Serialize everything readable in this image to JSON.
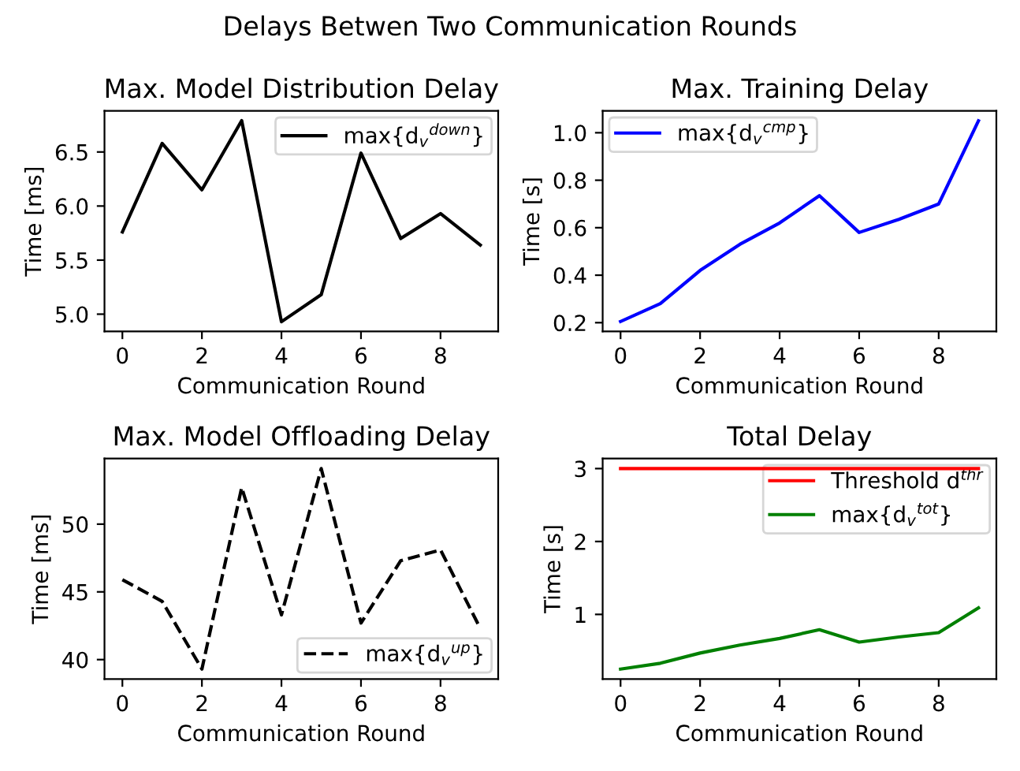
{
  "chart_data": [
    {
      "type": "line",
      "title": "Max. Model Distribution Delay",
      "xlabel": "Communication Round",
      "ylabel": "Time [ms]",
      "annotations": [
        "Delays Betwen Two Communication Rounds"
      ],
      "x": [
        0,
        1,
        2,
        3,
        4,
        5,
        6,
        7,
        8,
        9
      ],
      "series": [
        {
          "name": "max{d$_{v}$$^{down}$}",
          "color": "#000000",
          "line_style": "solid",
          "values": [
            5.76,
            6.58,
            6.15,
            6.79,
            4.93,
            5.18,
            6.49,
            5.7,
            5.93,
            5.64
          ]
        }
      ],
      "xlim": [
        -0.45,
        9.45
      ],
      "ylim": [
        4.84,
        6.88
      ],
      "xticks": [
        0,
        2,
        4,
        6,
        8
      ],
      "yticks": [
        {
          "value": 5,
          "label": "5.0"
        },
        5.5,
        {
          "value": 6,
          "label": "6.0"
        },
        6.5
      ],
      "legend": "upper right"
    },
    {
      "type": "line",
      "title": "Max. Training Delay",
      "xlabel": "Communication Round",
      "ylabel": "Time [s]",
      "x": [
        0,
        1,
        2,
        3,
        4,
        5,
        6,
        7,
        8,
        9
      ],
      "series": [
        {
          "name": "max{d$_{v}$$^{cmp}$}",
          "color": "#0000ff",
          "line_style": "solid",
          "values": [
            0.205,
            0.28,
            0.42,
            0.53,
            0.62,
            0.735,
            0.58,
            0.635,
            0.7,
            1.05
          ]
        }
      ],
      "xlim": [
        -0.45,
        9.45
      ],
      "ylim": [
        0.163,
        1.092
      ],
      "xticks": [
        0,
        2,
        4,
        6,
        8
      ],
      "yticks": [
        0.2,
        0.4,
        0.6,
        0.8,
        {
          "value": 1,
          "label": "1.0"
        }
      ],
      "legend": "upper left"
    },
    {
      "type": "line",
      "title": "Max. Model Offloading Delay",
      "xlabel": "Communication Round",
      "ylabel": "Time [ms]",
      "x": [
        0,
        1,
        2,
        3,
        4,
        5,
        6,
        7,
        8,
        9
      ],
      "series": [
        {
          "name": "max{d$_{v}$$^{up}$}",
          "color": "#000000",
          "line_style": "dashed",
          "values": [
            45.9,
            44.3,
            39.3,
            52.7,
            43.3,
            54.1,
            42.7,
            47.3,
            48.1,
            42.3
          ]
        }
      ],
      "xlim": [
        -0.45,
        9.45
      ],
      "ylim": [
        38.56,
        54.84
      ],
      "xticks": [
        0,
        2,
        4,
        6,
        8
      ],
      "yticks": [
        40,
        45,
        50
      ],
      "legend": "lower right"
    },
    {
      "type": "line",
      "title": "Total Delay",
      "xlabel": "Communication Round",
      "ylabel": "Time [s]",
      "x": [
        0,
        1,
        2,
        3,
        4,
        5,
        6,
        7,
        8,
        9
      ],
      "series": [
        {
          "name": "Threshold d$^{thr}$",
          "color": "#ff0000",
          "line_style": "solid",
          "values": [
            3,
            3,
            3,
            3,
            3,
            3,
            3,
            3,
            3,
            3
          ]
        },
        {
          "name": "max{d$_{v}$$^{tot}$}",
          "color": "#008000",
          "line_style": "solid",
          "values": [
            0.25,
            0.33,
            0.47,
            0.58,
            0.67,
            0.79,
            0.62,
            0.69,
            0.75,
            1.09
          ]
        }
      ],
      "xlim": [
        -0.45,
        9.45
      ],
      "ylim": [
        0.1125,
        3.1375
      ],
      "xticks": [
        0,
        2,
        4,
        6,
        8
      ],
      "yticks": [
        1,
        2,
        3
      ],
      "legend": "upper right"
    }
  ]
}
